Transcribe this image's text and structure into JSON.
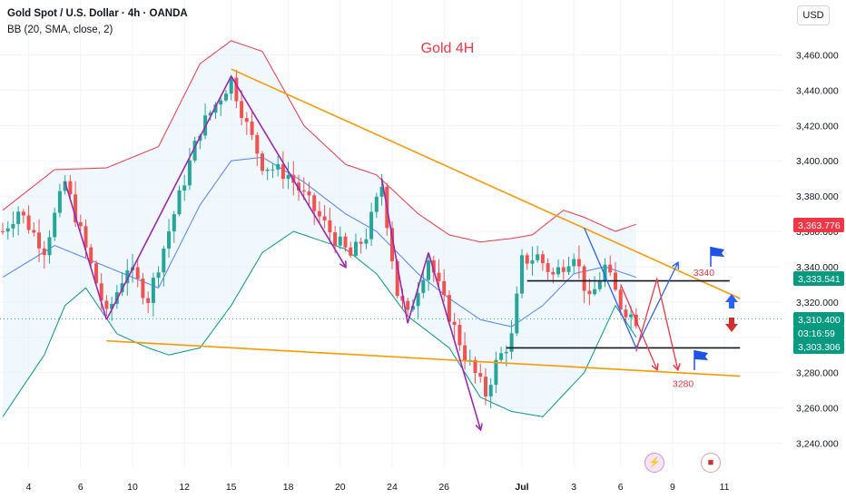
{
  "header": {
    "symbol": "Gold Spot / U.S. Dollar · 4h · OANDA",
    "indicator": "BB (20, SMA, close, 2)",
    "currency_button": "USD"
  },
  "colors": {
    "bull": "#26a69a",
    "bear": "#ef5350",
    "bb_upper": "#f23645",
    "bb_lower": "#089981",
    "bb_mid": "#2962ff",
    "bb_fill": "#e3f2fd",
    "trendline": "#ff9800",
    "wave": "#9c27b0",
    "annotation_red": "#f23645",
    "annotation_blue": "#2962ff"
  },
  "events": [
    {
      "icon": "lightning-icon",
      "glyph": "⚡"
    },
    {
      "icon": "us-flag-icon",
      "glyph": "■"
    }
  ],
  "chart_data": {
    "type": "candlestick",
    "title": "Gold 4H",
    "xlabel": "",
    "ylabel": "",
    "ylim": [
      3232,
      3490
    ],
    "grid": true,
    "y_ticks": [
      3240,
      3260,
      3280,
      3300,
      3320,
      3340,
      3360,
      3380,
      3400,
      3420,
      3440,
      3460
    ],
    "y_tick_labels": [
      "3,240.000",
      "3,260.000",
      "3,280.000",
      "3,300.000",
      "3,320.000",
      "3,340.000",
      "3,360.000",
      "3,380.000",
      "3,400.000",
      "3,420.000",
      "3,440.000",
      "3,460.000"
    ],
    "x_ticks": [
      {
        "label": "4",
        "bar": 5
      },
      {
        "label": "6",
        "bar": 15
      },
      {
        "label": "10",
        "bar": 25
      },
      {
        "label": "12",
        "bar": 35
      },
      {
        "label": "15",
        "bar": 44
      },
      {
        "label": "18",
        "bar": 55
      },
      {
        "label": "20",
        "bar": 65
      },
      {
        "label": "24",
        "bar": 75
      },
      {
        "label": "26",
        "bar": 85
      },
      {
        "label": "Jul",
        "bar": 100
      },
      {
        "label": "3",
        "bar": 110
      },
      {
        "label": "6",
        "bar": 119
      },
      {
        "label": "9",
        "bar": 129
      },
      {
        "label": "11",
        "bar": 139
      }
    ],
    "price_labels": [
      {
        "text": "3,363.776",
        "value": 3363.776,
        "color": "#f23645"
      },
      {
        "text": "3,333.541",
        "value": 3333.541,
        "color": "#089981"
      },
      {
        "text": "3,310.400",
        "value": 3310.4,
        "color": "#089981"
      },
      {
        "text": "03:16:59",
        "value": 3310.4,
        "color": "#089981"
      },
      {
        "text": "3,303.306",
        "value": 3303.306,
        "color": "#089981"
      }
    ],
    "anchors": [
      {
        "bar": 0,
        "price": 3360
      },
      {
        "bar": 3,
        "price": 3372
      },
      {
        "bar": 8,
        "price": 3350
      },
      {
        "bar": 12,
        "price": 3388
      },
      {
        "bar": 16,
        "price": 3350
      },
      {
        "bar": 20,
        "price": 3312
      },
      {
        "bar": 24,
        "price": 3340
      },
      {
        "bar": 28,
        "price": 3322
      },
      {
        "bar": 33,
        "price": 3370
      },
      {
        "bar": 38,
        "price": 3418
      },
      {
        "bar": 44,
        "price": 3446
      },
      {
        "bar": 47,
        "price": 3420
      },
      {
        "bar": 50,
        "price": 3398
      },
      {
        "bar": 55,
        "price": 3392
      },
      {
        "bar": 60,
        "price": 3372
      },
      {
        "bar": 64,
        "price": 3356
      },
      {
        "bar": 67,
        "price": 3346
      },
      {
        "bar": 70,
        "price": 3358
      },
      {
        "bar": 73,
        "price": 3386
      },
      {
        "bar": 76,
        "price": 3325
      },
      {
        "bar": 78,
        "price": 3312
      },
      {
        "bar": 82,
        "price": 3345
      },
      {
        "bar": 85,
        "price": 3320
      },
      {
        "bar": 89,
        "price": 3290
      },
      {
        "bar": 93,
        "price": 3268
      },
      {
        "bar": 95,
        "price": 3285
      },
      {
        "bar": 98,
        "price": 3300
      },
      {
        "bar": 100,
        "price": 3343
      },
      {
        "bar": 103,
        "price": 3346
      },
      {
        "bar": 106,
        "price": 3335
      },
      {
        "bar": 110,
        "price": 3348
      },
      {
        "bar": 113,
        "price": 3320
      },
      {
        "bar": 116,
        "price": 3340
      },
      {
        "bar": 119,
        "price": 3318
      },
      {
        "bar": 122,
        "price": 3310
      }
    ],
    "bollinger": {
      "upper": [
        {
          "bar": 0,
          "price": 3372
        },
        {
          "bar": 10,
          "price": 3395
        },
        {
          "bar": 20,
          "price": 3396
        },
        {
          "bar": 30,
          "price": 3408
        },
        {
          "bar": 38,
          "price": 3455
        },
        {
          "bar": 44,
          "price": 3468
        },
        {
          "bar": 50,
          "price": 3462
        },
        {
          "bar": 58,
          "price": 3420
        },
        {
          "bar": 66,
          "price": 3398
        },
        {
          "bar": 72,
          "price": 3392
        },
        {
          "bar": 80,
          "price": 3370
        },
        {
          "bar": 86,
          "price": 3358
        },
        {
          "bar": 92,
          "price": 3354
        },
        {
          "bar": 98,
          "price": 3356
        },
        {
          "bar": 102,
          "price": 3358
        },
        {
          "bar": 108,
          "price": 3372
        },
        {
          "bar": 112,
          "price": 3368
        },
        {
          "bar": 118,
          "price": 3360
        },
        {
          "bar": 122,
          "price": 3364
        }
      ],
      "middle": [
        {
          "bar": 0,
          "price": 3334
        },
        {
          "bar": 10,
          "price": 3352
        },
        {
          "bar": 20,
          "price": 3340
        },
        {
          "bar": 30,
          "price": 3328
        },
        {
          "bar": 38,
          "price": 3375
        },
        {
          "bar": 44,
          "price": 3400
        },
        {
          "bar": 50,
          "price": 3402
        },
        {
          "bar": 58,
          "price": 3388
        },
        {
          "bar": 66,
          "price": 3370
        },
        {
          "bar": 72,
          "price": 3360
        },
        {
          "bar": 80,
          "price": 3336
        },
        {
          "bar": 86,
          "price": 3322
        },
        {
          "bar": 92,
          "price": 3310
        },
        {
          "bar": 98,
          "price": 3306
        },
        {
          "bar": 104,
          "price": 3318
        },
        {
          "bar": 110,
          "price": 3336
        },
        {
          "bar": 116,
          "price": 3340
        },
        {
          "bar": 122,
          "price": 3334
        }
      ],
      "lower": [
        {
          "bar": 0,
          "price": 3255
        },
        {
          "bar": 8,
          "price": 3290
        },
        {
          "bar": 12,
          "price": 3318
        },
        {
          "bar": 16,
          "price": 3328
        },
        {
          "bar": 22,
          "price": 3302
        },
        {
          "bar": 28,
          "price": 3294
        },
        {
          "bar": 32,
          "price": 3290
        },
        {
          "bar": 38,
          "price": 3294
        },
        {
          "bar": 44,
          "price": 3318
        },
        {
          "bar": 50,
          "price": 3348
        },
        {
          "bar": 56,
          "price": 3360
        },
        {
          "bar": 66,
          "price": 3350
        },
        {
          "bar": 72,
          "price": 3336
        },
        {
          "bar": 78,
          "price": 3312
        },
        {
          "bar": 86,
          "price": 3294
        },
        {
          "bar": 92,
          "price": 3266
        },
        {
          "bar": 98,
          "price": 3258
        },
        {
          "bar": 104,
          "price": 3255
        },
        {
          "bar": 112,
          "price": 3280
        },
        {
          "bar": 118,
          "price": 3318
        },
        {
          "bar": 122,
          "price": 3300
        }
      ]
    },
    "trendlines": [
      {
        "from": {
          "bar": 44,
          "price": 3452
        },
        "to": {
          "bar": 142,
          "price": 3322
        }
      },
      {
        "from": {
          "bar": 20,
          "price": 3298
        },
        "to": {
          "bar": 142,
          "price": 3278
        }
      }
    ],
    "horizontal_levels": [
      {
        "price": 3332,
        "from_bar": 101,
        "to_bar": 140
      },
      {
        "price": 3294,
        "from_bar": 97,
        "to_bar": 142
      }
    ],
    "wave_lines": [
      {
        "from": {
          "bar": 12,
          "price": 3388
        },
        "to": {
          "bar": 20,
          "price": 3310
        },
        "arrow": false
      },
      {
        "from": {
          "bar": 20,
          "price": 3310
        },
        "to": {
          "bar": 44,
          "price": 3448
        },
        "arrow": false
      },
      {
        "from": {
          "bar": 44,
          "price": 3448
        },
        "to": {
          "bar": 66,
          "price": 3340
        },
        "arrow": true
      },
      {
        "from": {
          "bar": 73,
          "price": 3390
        },
        "to": {
          "bar": 78,
          "price": 3308
        },
        "arrow": false
      },
      {
        "from": {
          "bar": 78,
          "price": 3308
        },
        "to": {
          "bar": 82,
          "price": 3348
        },
        "arrow": false
      },
      {
        "from": {
          "bar": 82,
          "price": 3348
        },
        "to": {
          "bar": 92,
          "price": 3248
        },
        "arrow": true
      }
    ],
    "projection_lines": [
      {
        "color": "red",
        "points": [
          {
            "bar": 119,
            "price": 3330
          },
          {
            "bar": 126,
            "price": 3282
          }
        ],
        "arrow": true
      },
      {
        "color": "blue",
        "points": [
          {
            "bar": 112,
            "price": 3362
          },
          {
            "bar": 122,
            "price": 3294
          },
          {
            "bar": 130,
            "price": 3342
          }
        ],
        "arrow": true
      },
      {
        "color": "red",
        "points": [
          {
            "bar": 122,
            "price": 3292
          },
          {
            "bar": 126,
            "price": 3333
          },
          {
            "bar": 130,
            "price": 3282
          }
        ],
        "arrow": true
      }
    ],
    "annotations": [
      {
        "text": "3340",
        "bar": 133,
        "price": 3337
      },
      {
        "text": "3280",
        "bar": 129,
        "price": 3274
      }
    ]
  }
}
